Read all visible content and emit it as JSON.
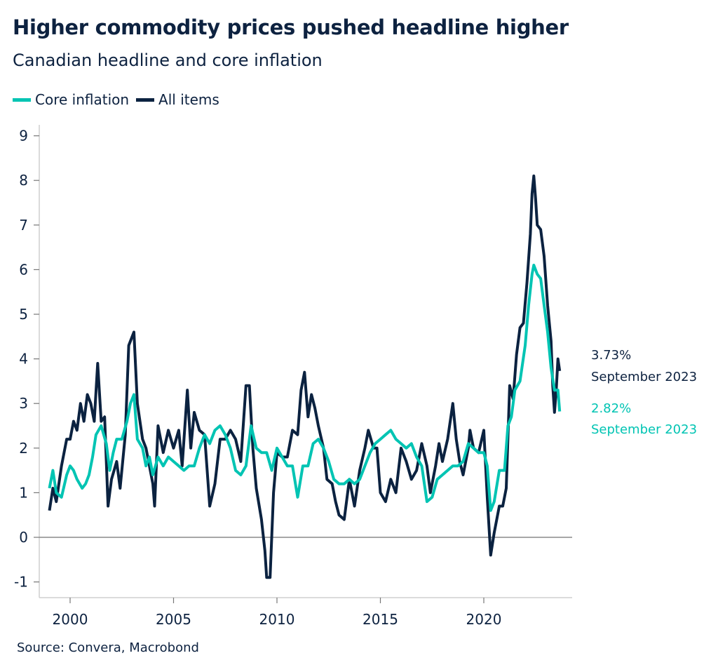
{
  "chart_data": {
    "type": "line",
    "title": "Higher commodity prices pushed headline higher",
    "subtitle": "Canadian headline and core inflation",
    "source": "Source: Convera, Macrobond",
    "xlabel": "",
    "ylabel": "",
    "xlim": [
      "1999-01",
      "2023-09"
    ],
    "ylim": [
      -1.3,
      9.3
    ],
    "x_ticks": [
      "2000",
      "2005",
      "2010",
      "2015",
      "2020"
    ],
    "y_ticks": [
      "-1",
      "0",
      "1",
      "2",
      "3",
      "4",
      "5",
      "6",
      "7",
      "8",
      "9"
    ],
    "grid": false,
    "zero_line": true,
    "legend_position": "top-left",
    "series": [
      {
        "name": "Core inflation",
        "color": "#00c4b3",
        "end_label": {
          "value": "2.82%",
          "date": "September 2023"
        },
        "points": [
          [
            "1999-01",
            1.1
          ],
          [
            "1999-03",
            1.5
          ],
          [
            "1999-05",
            1.0
          ],
          [
            "1999-08",
            0.9
          ],
          [
            "1999-11",
            1.4
          ],
          [
            "2000-01",
            1.6
          ],
          [
            "2000-03",
            1.5
          ],
          [
            "2000-05",
            1.3
          ],
          [
            "2000-08",
            1.1
          ],
          [
            "2000-10",
            1.2
          ],
          [
            "2000-12",
            1.4
          ],
          [
            "2001-02",
            1.8
          ],
          [
            "2001-04",
            2.3
          ],
          [
            "2001-07",
            2.5
          ],
          [
            "2001-10",
            2.1
          ],
          [
            "2001-12",
            1.5
          ],
          [
            "2002-02",
            1.9
          ],
          [
            "2002-04",
            2.2
          ],
          [
            "2002-07",
            2.2
          ],
          [
            "2002-10",
            2.6
          ],
          [
            "2002-12",
            3.0
          ],
          [
            "2003-02",
            3.2
          ],
          [
            "2003-04",
            2.2
          ],
          [
            "2003-07",
            2.0
          ],
          [
            "2003-09",
            1.6
          ],
          [
            "2003-11",
            1.8
          ],
          [
            "2004-01",
            1.4
          ],
          [
            "2004-04",
            1.8
          ],
          [
            "2004-07",
            1.6
          ],
          [
            "2004-10",
            1.8
          ],
          [
            "2005-01",
            1.7
          ],
          [
            "2005-04",
            1.6
          ],
          [
            "2005-07",
            1.5
          ],
          [
            "2005-10",
            1.6
          ],
          [
            "2006-01",
            1.6
          ],
          [
            "2006-04",
            2.0
          ],
          [
            "2006-07",
            2.3
          ],
          [
            "2006-10",
            2.1
          ],
          [
            "2007-01",
            2.4
          ],
          [
            "2007-04",
            2.5
          ],
          [
            "2007-07",
            2.3
          ],
          [
            "2007-10",
            2.0
          ],
          [
            "2008-01",
            1.5
          ],
          [
            "2008-04",
            1.4
          ],
          [
            "2008-07",
            1.6
          ],
          [
            "2008-10",
            2.5
          ],
          [
            "2009-01",
            2.0
          ],
          [
            "2009-04",
            1.9
          ],
          [
            "2009-07",
            1.9
          ],
          [
            "2009-10",
            1.5
          ],
          [
            "2010-01",
            2.0
          ],
          [
            "2010-04",
            1.8
          ],
          [
            "2010-07",
            1.6
          ],
          [
            "2010-10",
            1.6
          ],
          [
            "2011-01",
            0.9
          ],
          [
            "2011-04",
            1.6
          ],
          [
            "2011-07",
            1.6
          ],
          [
            "2011-10",
            2.1
          ],
          [
            "2012-01",
            2.2
          ],
          [
            "2012-04",
            2.0
          ],
          [
            "2012-07",
            1.7
          ],
          [
            "2012-10",
            1.3
          ],
          [
            "2013-01",
            1.2
          ],
          [
            "2013-04",
            1.2
          ],
          [
            "2013-07",
            1.3
          ],
          [
            "2013-10",
            1.2
          ],
          [
            "2014-01",
            1.3
          ],
          [
            "2014-04",
            1.6
          ],
          [
            "2014-07",
            1.9
          ],
          [
            "2014-10",
            2.1
          ],
          [
            "2015-01",
            2.2
          ],
          [
            "2015-04",
            2.3
          ],
          [
            "2015-07",
            2.4
          ],
          [
            "2015-10",
            2.2
          ],
          [
            "2016-01",
            2.1
          ],
          [
            "2016-04",
            2.0
          ],
          [
            "2016-07",
            2.1
          ],
          [
            "2016-10",
            1.8
          ],
          [
            "2017-01",
            1.6
          ],
          [
            "2017-04",
            0.8
          ],
          [
            "2017-07",
            0.9
          ],
          [
            "2017-10",
            1.3
          ],
          [
            "2018-01",
            1.4
          ],
          [
            "2018-04",
            1.5
          ],
          [
            "2018-07",
            1.6
          ],
          [
            "2018-10",
            1.6
          ],
          [
            "2019-01",
            1.7
          ],
          [
            "2019-04",
            2.1
          ],
          [
            "2019-07",
            2.0
          ],
          [
            "2019-10",
            1.9
          ],
          [
            "2020-01",
            1.9
          ],
          [
            "2020-03",
            1.6
          ],
          [
            "2020-05",
            0.6
          ],
          [
            "2020-07",
            0.8
          ],
          [
            "2020-10",
            1.5
          ],
          [
            "2021-01",
            1.5
          ],
          [
            "2021-03",
            2.5
          ],
          [
            "2021-05",
            2.7
          ],
          [
            "2021-07",
            3.3
          ],
          [
            "2021-10",
            3.5
          ],
          [
            "2022-01",
            4.3
          ],
          [
            "2022-03",
            5.2
          ],
          [
            "2022-05",
            5.9
          ],
          [
            "2022-06",
            6.1
          ],
          [
            "2022-08",
            5.9
          ],
          [
            "2022-10",
            5.8
          ],
          [
            "2022-12",
            5.2
          ],
          [
            "2023-02",
            4.6
          ],
          [
            "2023-04",
            3.8
          ],
          [
            "2023-06",
            3.3
          ],
          [
            "2023-08",
            3.3
          ],
          [
            "2023-09",
            2.82
          ]
        ]
      },
      {
        "name": "All items",
        "color": "#0b2240",
        "end_label": {
          "value": "3.73%",
          "date": "September 2023"
        },
        "points": [
          [
            "1999-01",
            0.6
          ],
          [
            "1999-03",
            1.1
          ],
          [
            "1999-05",
            0.8
          ],
          [
            "1999-08",
            1.6
          ],
          [
            "1999-11",
            2.2
          ],
          [
            "2000-01",
            2.2
          ],
          [
            "2000-03",
            2.6
          ],
          [
            "2000-05",
            2.4
          ],
          [
            "2000-07",
            3.0
          ],
          [
            "2000-09",
            2.6
          ],
          [
            "2000-11",
            3.2
          ],
          [
            "2001-01",
            3.0
          ],
          [
            "2001-03",
            2.6
          ],
          [
            "2001-05",
            3.9
          ],
          [
            "2001-07",
            2.6
          ],
          [
            "2001-09",
            2.7
          ],
          [
            "2001-11",
            0.7
          ],
          [
            "2002-01",
            1.3
          ],
          [
            "2002-04",
            1.7
          ],
          [
            "2002-06",
            1.1
          ],
          [
            "2002-09",
            2.3
          ],
          [
            "2002-11",
            4.3
          ],
          [
            "2003-02",
            4.6
          ],
          [
            "2003-04",
            3.0
          ],
          [
            "2003-07",
            2.2
          ],
          [
            "2003-09",
            2.0
          ],
          [
            "2003-11",
            1.6
          ],
          [
            "2004-01",
            1.2
          ],
          [
            "2004-02",
            0.7
          ],
          [
            "2004-04",
            2.5
          ],
          [
            "2004-07",
            1.9
          ],
          [
            "2004-10",
            2.4
          ],
          [
            "2005-01",
            2.0
          ],
          [
            "2005-04",
            2.4
          ],
          [
            "2005-06",
            1.6
          ],
          [
            "2005-09",
            3.3
          ],
          [
            "2005-11",
            2.0
          ],
          [
            "2006-01",
            2.8
          ],
          [
            "2006-04",
            2.4
          ],
          [
            "2006-07",
            2.3
          ],
          [
            "2006-10",
            0.7
          ],
          [
            "2007-01",
            1.2
          ],
          [
            "2007-04",
            2.2
          ],
          [
            "2007-07",
            2.2
          ],
          [
            "2007-10",
            2.4
          ],
          [
            "2008-01",
            2.2
          ],
          [
            "2008-04",
            1.7
          ],
          [
            "2008-07",
            3.4
          ],
          [
            "2008-09",
            3.4
          ],
          [
            "2008-11",
            2.0
          ],
          [
            "2009-01",
            1.1
          ],
          [
            "2009-04",
            0.4
          ],
          [
            "2009-06",
            -0.3
          ],
          [
            "2009-07",
            -0.9
          ],
          [
            "2009-09",
            -0.9
          ],
          [
            "2009-11",
            1.0
          ],
          [
            "2010-01",
            1.9
          ],
          [
            "2010-04",
            1.8
          ],
          [
            "2010-07",
            1.8
          ],
          [
            "2010-10",
            2.4
          ],
          [
            "2011-01",
            2.3
          ],
          [
            "2011-03",
            3.3
          ],
          [
            "2011-05",
            3.7
          ],
          [
            "2011-07",
            2.7
          ],
          [
            "2011-09",
            3.2
          ],
          [
            "2011-11",
            2.9
          ],
          [
            "2012-01",
            2.5
          ],
          [
            "2012-04",
            2.0
          ],
          [
            "2012-06",
            1.3
          ],
          [
            "2012-09",
            1.2
          ],
          [
            "2012-11",
            0.8
          ],
          [
            "2013-01",
            0.5
          ],
          [
            "2013-04",
            0.4
          ],
          [
            "2013-07",
            1.3
          ],
          [
            "2013-10",
            0.7
          ],
          [
            "2014-01",
            1.5
          ],
          [
            "2014-04",
            2.0
          ],
          [
            "2014-06",
            2.4
          ],
          [
            "2014-09",
            2.0
          ],
          [
            "2014-11",
            2.0
          ],
          [
            "2015-01",
            1.0
          ],
          [
            "2015-04",
            0.8
          ],
          [
            "2015-07",
            1.3
          ],
          [
            "2015-10",
            1.0
          ],
          [
            "2016-01",
            2.0
          ],
          [
            "2016-04",
            1.7
          ],
          [
            "2016-07",
            1.3
          ],
          [
            "2016-10",
            1.5
          ],
          [
            "2017-01",
            2.1
          ],
          [
            "2017-04",
            1.6
          ],
          [
            "2017-06",
            1.0
          ],
          [
            "2017-09",
            1.6
          ],
          [
            "2017-11",
            2.1
          ],
          [
            "2018-01",
            1.7
          ],
          [
            "2018-04",
            2.2
          ],
          [
            "2018-07",
            3.0
          ],
          [
            "2018-09",
            2.2
          ],
          [
            "2018-11",
            1.7
          ],
          [
            "2019-01",
            1.4
          ],
          [
            "2019-04",
            2.0
          ],
          [
            "2019-05",
            2.4
          ],
          [
            "2019-07",
            2.0
          ],
          [
            "2019-10",
            1.9
          ],
          [
            "2020-01",
            2.4
          ],
          [
            "2020-03",
            0.9
          ],
          [
            "2020-05",
            -0.4
          ],
          [
            "2020-07",
            0.1
          ],
          [
            "2020-10",
            0.7
          ],
          [
            "2020-12",
            0.7
          ],
          [
            "2021-02",
            1.1
          ],
          [
            "2021-04",
            3.4
          ],
          [
            "2021-06",
            3.1
          ],
          [
            "2021-08",
            4.1
          ],
          [
            "2021-10",
            4.7
          ],
          [
            "2021-12",
            4.8
          ],
          [
            "2022-02",
            5.7
          ],
          [
            "2022-04",
            6.8
          ],
          [
            "2022-05",
            7.7
          ],
          [
            "2022-06",
            8.1
          ],
          [
            "2022-07",
            7.6
          ],
          [
            "2022-08",
            7.0
          ],
          [
            "2022-10",
            6.9
          ],
          [
            "2022-12",
            6.3
          ],
          [
            "2023-02",
            5.2
          ],
          [
            "2023-04",
            4.4
          ],
          [
            "2023-05",
            3.4
          ],
          [
            "2023-06",
            2.8
          ],
          [
            "2023-07",
            3.3
          ],
          [
            "2023-08",
            4.0
          ],
          [
            "2023-09",
            3.73
          ]
        ]
      }
    ]
  }
}
